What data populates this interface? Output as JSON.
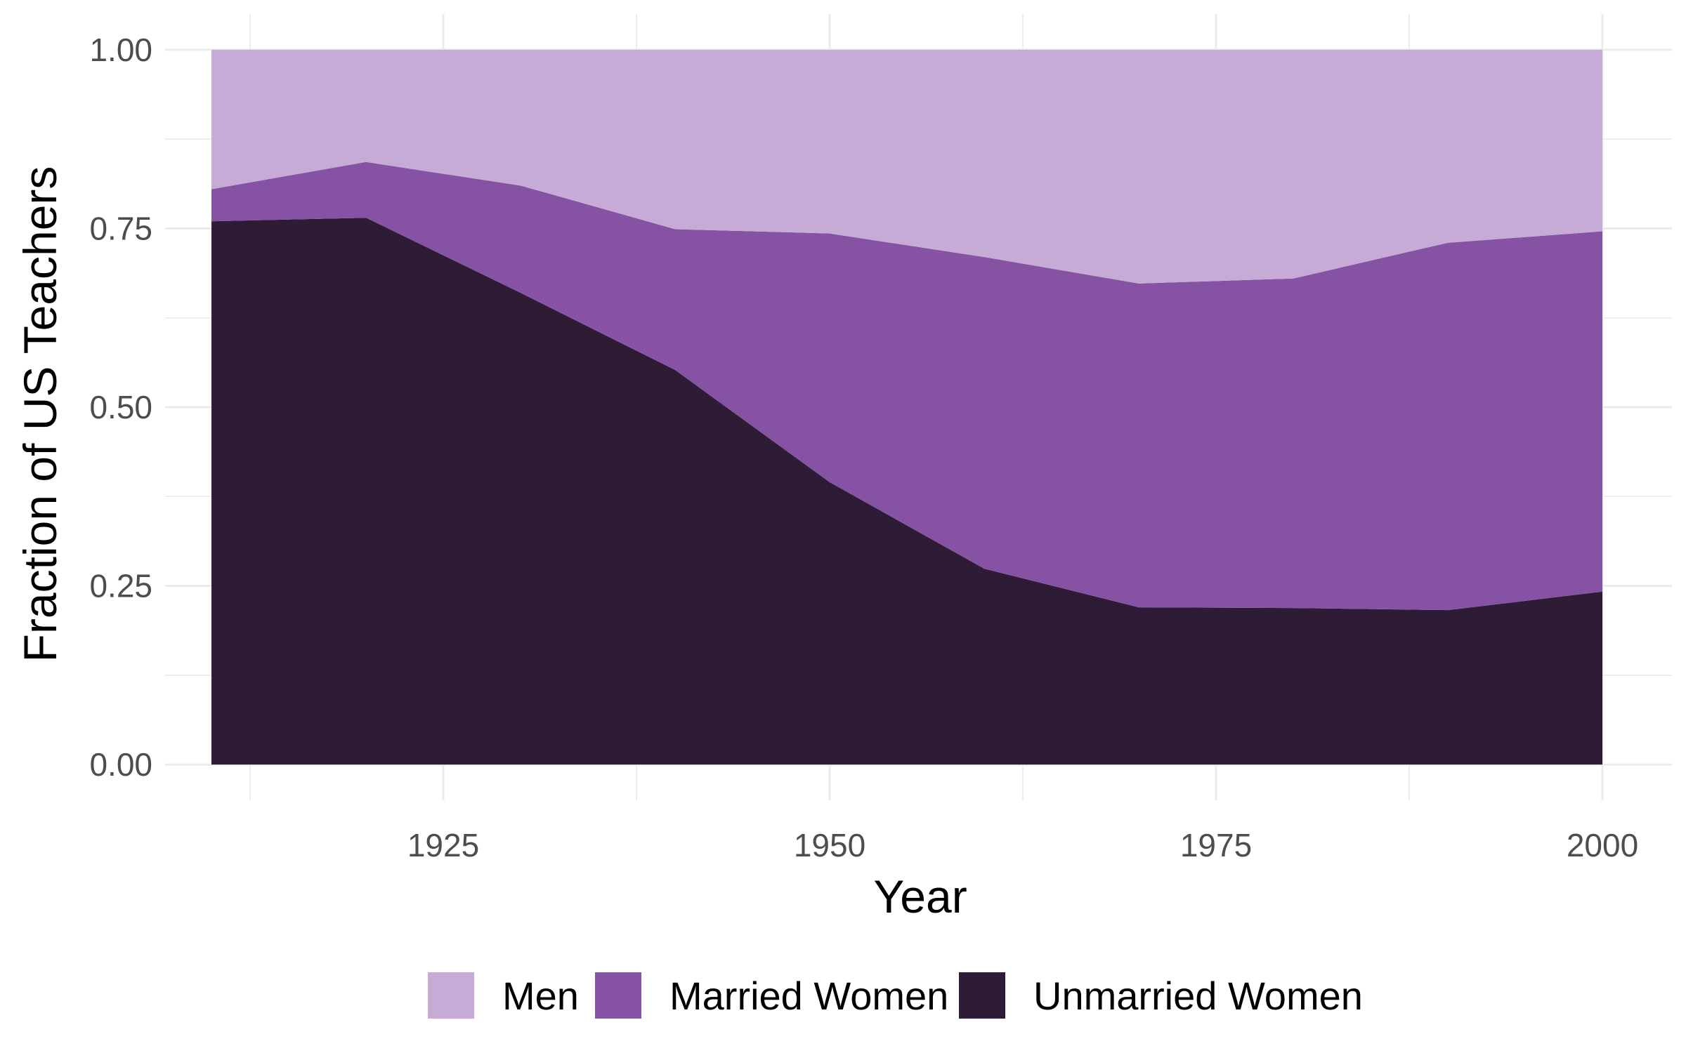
{
  "chart_data": {
    "type": "area",
    "stacked": true,
    "normalized": true,
    "title": "",
    "xlabel": "Year",
    "ylabel": "Fraction of US Teachers",
    "x": [
      1910,
      1920,
      1930,
      1940,
      1950,
      1960,
      1970,
      1980,
      1990,
      2000
    ],
    "series": [
      {
        "name": "Unmarried Women",
        "color": "#2e1c37",
        "values": [
          0.76,
          0.765,
          0.66,
          0.552,
          0.395,
          0.274,
          0.22,
          0.219,
          0.216,
          0.242
        ]
      },
      {
        "name": "Married Women",
        "color": "#8652a3",
        "values": [
          0.045,
          0.078,
          0.15,
          0.197,
          0.348,
          0.436,
          0.453,
          0.461,
          0.514,
          0.504
        ]
      },
      {
        "name": "Men",
        "color": "#c6abd6",
        "values": [
          0.195,
          0.157,
          0.19,
          0.251,
          0.257,
          0.29,
          0.327,
          0.32,
          0.27,
          0.254
        ]
      }
    ],
    "xlim": [
      1907,
      2004.5
    ],
    "ylim": [
      -0.05,
      1.05
    ],
    "x_ticks": [
      1925,
      1950,
      1975,
      2000
    ],
    "x_tick_labels": [
      "1925",
      "1950",
      "1975",
      "2000"
    ],
    "x_minor_ticks": [
      1912.5,
      1937.5,
      1962.5,
      1987.5
    ],
    "y_ticks": [
      0,
      0.25,
      0.5,
      0.75,
      1.0
    ],
    "y_tick_labels": [
      "0.00",
      "0.25",
      "0.50",
      "0.75",
      "1.00"
    ],
    "y_minor_ticks": [
      0.125,
      0.375,
      0.625,
      0.875
    ],
    "grid": true,
    "legend": {
      "position": "bottom",
      "order": [
        "Men",
        "Married Women",
        "Unmarried Women"
      ]
    }
  }
}
